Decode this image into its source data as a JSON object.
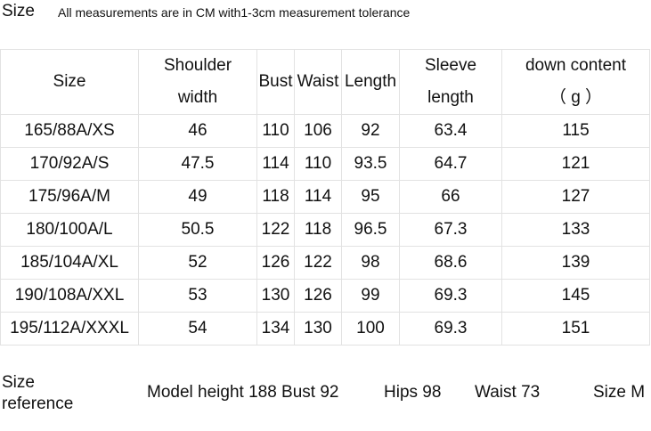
{
  "header": {
    "title": "Size",
    "note": "All measurements are in CM with1-3cm measurement tolerance"
  },
  "table": {
    "columns": [
      [
        "Size"
      ],
      [
        "Shoulder",
        "width"
      ],
      [
        "Bust"
      ],
      [
        "Waist"
      ],
      [
        "Length"
      ],
      [
        "Sleeve",
        "length"
      ],
      [
        "down content",
        "（ g ）"
      ]
    ],
    "rows": [
      [
        "165/88A/XS",
        "46",
        "110",
        "106",
        "92",
        "63.4",
        "115"
      ],
      [
        "170/92A/S",
        "47.5",
        "114",
        "110",
        "93.5",
        "64.7",
        "121"
      ],
      [
        "175/96A/M",
        "49",
        "118",
        "114",
        "95",
        "66",
        "127"
      ],
      [
        "180/100A/L",
        "50.5",
        "122",
        "118",
        "96.5",
        "67.3",
        "133"
      ],
      [
        "185/104A/XL",
        "52",
        "126",
        "122",
        "98",
        "68.6",
        "139"
      ],
      [
        "190/108A/XXL",
        "53",
        "130",
        "126",
        "99",
        "69.3",
        "145"
      ],
      [
        "195/112A/XXXL",
        "54",
        "134",
        "130",
        "100",
        "69.3",
        "151"
      ]
    ]
  },
  "reference": {
    "label": [
      "Size",
      "reference"
    ],
    "items": [
      "Model height 188 Bust 92",
      "Hips 98",
      "Waist 73",
      "Size M"
    ]
  }
}
